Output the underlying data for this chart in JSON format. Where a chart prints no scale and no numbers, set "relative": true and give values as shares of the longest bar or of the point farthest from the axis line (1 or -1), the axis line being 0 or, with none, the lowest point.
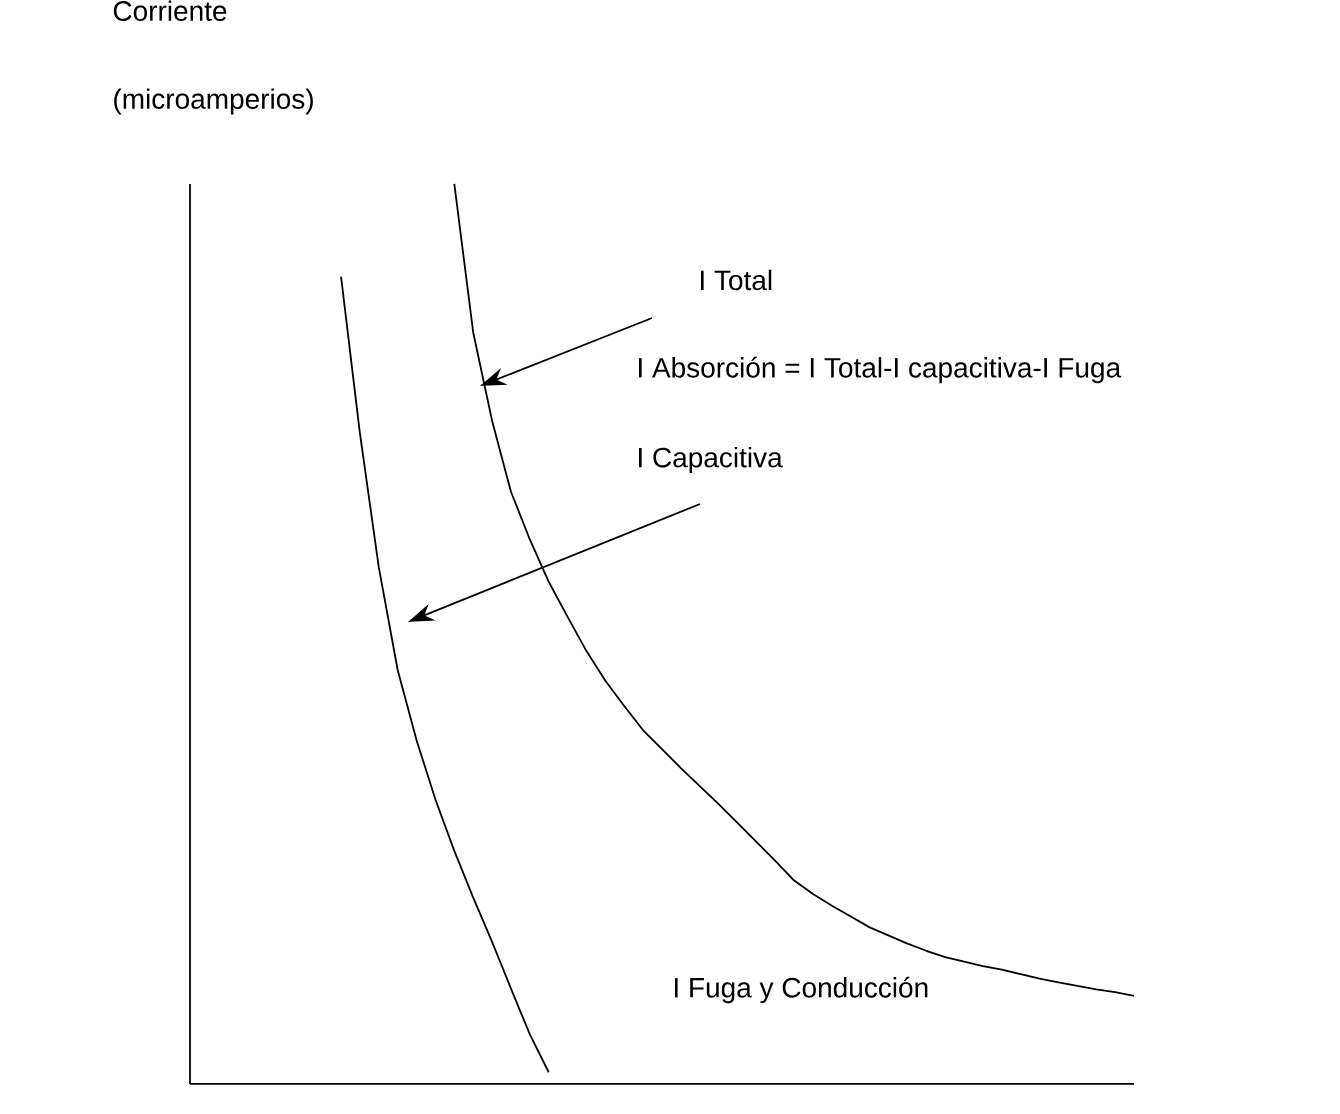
{
  "chart_data": {
    "type": "line",
    "relative": true,
    "ylabel": "Corriente (microamperios)",
    "categories": [
      null,
      null,
      null,
      null,
      null,
      null,
      null,
      null,
      null,
      null,
      null,
      null,
      null,
      null,
      null,
      null,
      null,
      null,
      null,
      null,
      null,
      null,
      null,
      null,
      null,
      null,
      null,
      null,
      null,
      null,
      null,
      null,
      null,
      null,
      null,
      null,
      null,
      null,
      null,
      null,
      null,
      null,
      null,
      null,
      null,
      null,
      null,
      null,
      null,
      null,
      null
    ],
    "series": [
      {
        "color": "#000000",
        "values": [
          null,
          null,
          null,
          null,
          null,
          null,
          null,
          null,
          null,
          null,
          null,
          null,
          null,
          null,
          1.0,
          0.835,
          0.737,
          0.658,
          0.605,
          0.558,
          0.519,
          0.481,
          0.448,
          0.42,
          0.393,
          0.372,
          0.351,
          0.331,
          0.311,
          0.29,
          0.269,
          0.248,
          0.226,
          0.211,
          0.198,
          0.186,
          0.174,
          0.165,
          0.156,
          0.148,
          0.141,
          0.136,
          0.131,
          0.127,
          0.122,
          0.117,
          0.113,
          0.109,
          0.105,
          0.102,
          0.098
        ]
      },
      {
        "color": "#000000",
        "values": [
          null,
          null,
          null,
          null,
          null,
          null,
          null,
          null,
          0.897,
          0.723,
          0.574,
          0.46,
          0.382,
          0.316,
          0.259,
          0.207,
          0.158,
          0.106,
          0.055,
          0.013,
          null,
          null,
          null,
          null,
          null,
          null,
          null,
          null,
          null,
          null,
          null,
          null,
          null,
          null,
          null,
          null,
          null,
          null,
          null,
          null,
          null,
          null,
          null,
          null,
          null,
          null,
          null,
          null,
          null,
          null,
          null
        ]
      }
    ],
    "annotations": [
      "I Total",
      "I Absorción = I  Total-I capacitiva-I Fuga",
      "I Capacitiva",
      "I Fuga y Conducción"
    ]
  }
}
